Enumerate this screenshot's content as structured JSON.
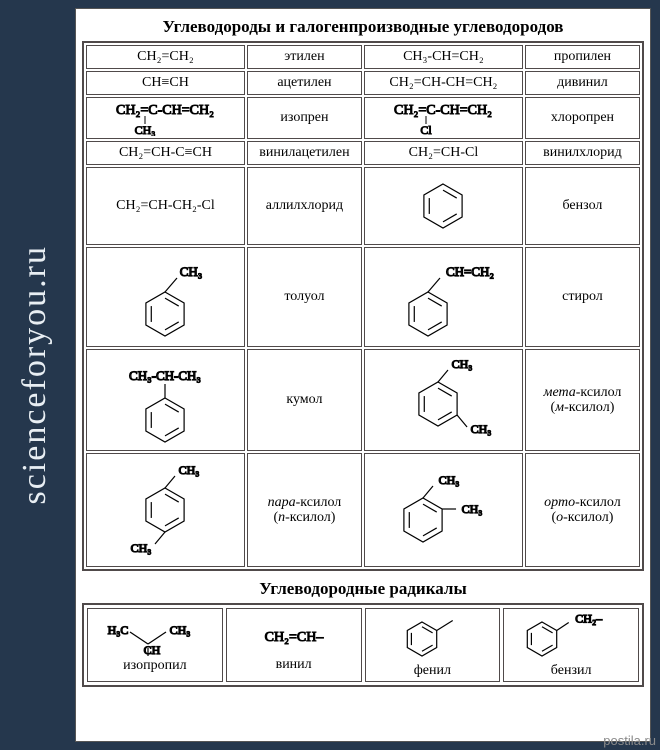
{
  "colors": {
    "page_bg": "#25374d",
    "panel_bg": "#ffffff",
    "border": "#504a4a",
    "sidebar_text": "#e8eef3",
    "watermark": "#8a8a8a"
  },
  "sidebar_text": "scienceforyou.ru",
  "title1": "Углеводороды и галогенпроизводные углеводородов",
  "title2": "Углеводородные радикалы",
  "watermark": "postila.ru",
  "rows": [
    {
      "h": "hsm",
      "f1": "CH₂=CH₂",
      "n1": "этилен",
      "f2": "CH₃-CH=CH₂",
      "n2": "пропилен"
    },
    {
      "h": "hsm",
      "f1": "CH≡CH",
      "n1": "ацетилен",
      "f2": "CH₂=CH-CH=CH₂",
      "n2": "дивинил"
    },
    {
      "h": "hmd",
      "f1_svg": "isoprene",
      "n1": "изопрен",
      "f2_svg": "chloroprene",
      "n2": "хлоропрен"
    },
    {
      "h": "hsm",
      "f1": "CH₂=CH-C≡CH",
      "n1": "винилацетилен",
      "f2": "CH₂=CH-Cl",
      "n2": "винилхлорид"
    },
    {
      "h": "hlg",
      "f1": "CH₂=CH-CH₂-Cl",
      "n1": "аллилхлорид",
      "f2_svg": "benzene",
      "n2": "бензол"
    },
    {
      "h": "hxl",
      "f1_svg": "toluene",
      "n1": "толуол",
      "f2_svg": "styrene",
      "n2": "стирол"
    },
    {
      "h": "hxl",
      "f1_svg": "cumene",
      "n1": "кумол",
      "f2_svg": "mxylene",
      "n2_html": "<span class='ital'>мета</span>-ксилол<br>(<span class='ital'>м</span>-ксилол)"
    },
    {
      "h": "hxxl",
      "f1_svg": "pxylene",
      "n1_html": "<span class='ital'>пара</span>-ксилол<br>(<span class='ital'>п</span>-ксилол)",
      "f2_svg": "oxylene",
      "n2_html": "<span class='ital'>орто</span>-ксилол<br>(<span class='ital'>о</span>-ксилол)"
    }
  ],
  "radicals": [
    {
      "svg": "isopropyl",
      "label": "изопропил"
    },
    {
      "svg": "vinyl",
      "label": "винил"
    },
    {
      "svg": "phenyl",
      "label": "фенил"
    },
    {
      "svg": "benzyl",
      "label": "бензил"
    }
  ]
}
